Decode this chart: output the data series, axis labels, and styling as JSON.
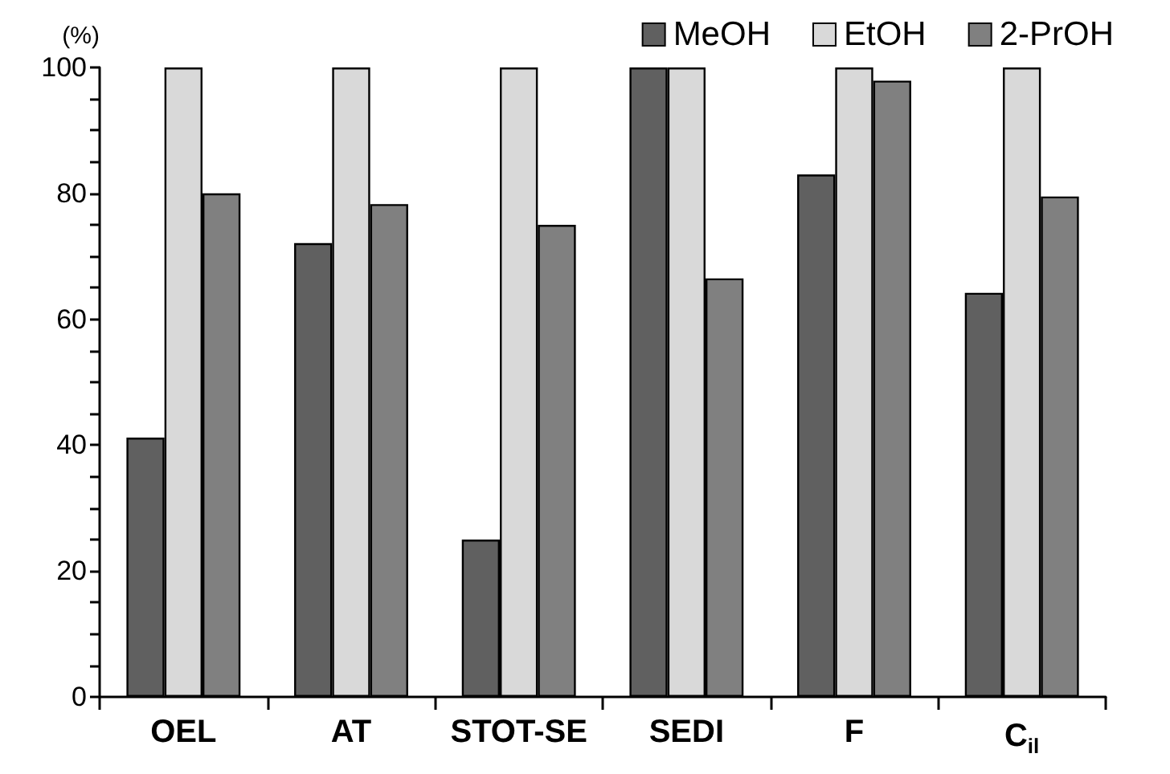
{
  "chart_data": {
    "type": "bar",
    "ylabel": "(%)",
    "categories": [
      "OEL",
      "AT",
      "STOT-SE",
      "SEDI",
      "F",
      "C$_{il}$"
    ],
    "series": [
      {
        "name": "MeOH",
        "color": "#606060",
        "values": [
          41.2,
          72.1,
          25,
          100,
          83,
          64.2
        ]
      },
      {
        "name": "EtOH",
        "color": "#d9d9d9",
        "values": [
          100,
          100,
          100,
          100,
          100,
          100
        ]
      },
      {
        "name": "2-PrOH",
        "color": "#808080",
        "values": [
          80,
          78.3,
          75,
          66.5,
          97.9,
          79.5
        ]
      }
    ],
    "ylim": [
      0,
      100
    ],
    "yticks": [
      0,
      {
        "value": 5,
        "label": null
      },
      {
        "value": 10,
        "label": null
      },
      {
        "value": 15,
        "label": null
      },
      20,
      {
        "value": 25,
        "label": null
      },
      {
        "value": 30,
        "label": null
      },
      {
        "value": 35,
        "label": null
      },
      40,
      {
        "value": 45,
        "label": null
      },
      {
        "value": 50,
        "label": null
      },
      {
        "value": 55,
        "label": null
      },
      60,
      {
        "value": 65,
        "label": null
      },
      {
        "value": 70,
        "label": null
      },
      {
        "value": 75,
        "label": null
      },
      80,
      {
        "value": 85,
        "label": null
      },
      {
        "value": 90,
        "label": null
      },
      {
        "value": 95,
        "label": null
      },
      100
    ],
    "grid": false,
    "legend": "top right"
  }
}
